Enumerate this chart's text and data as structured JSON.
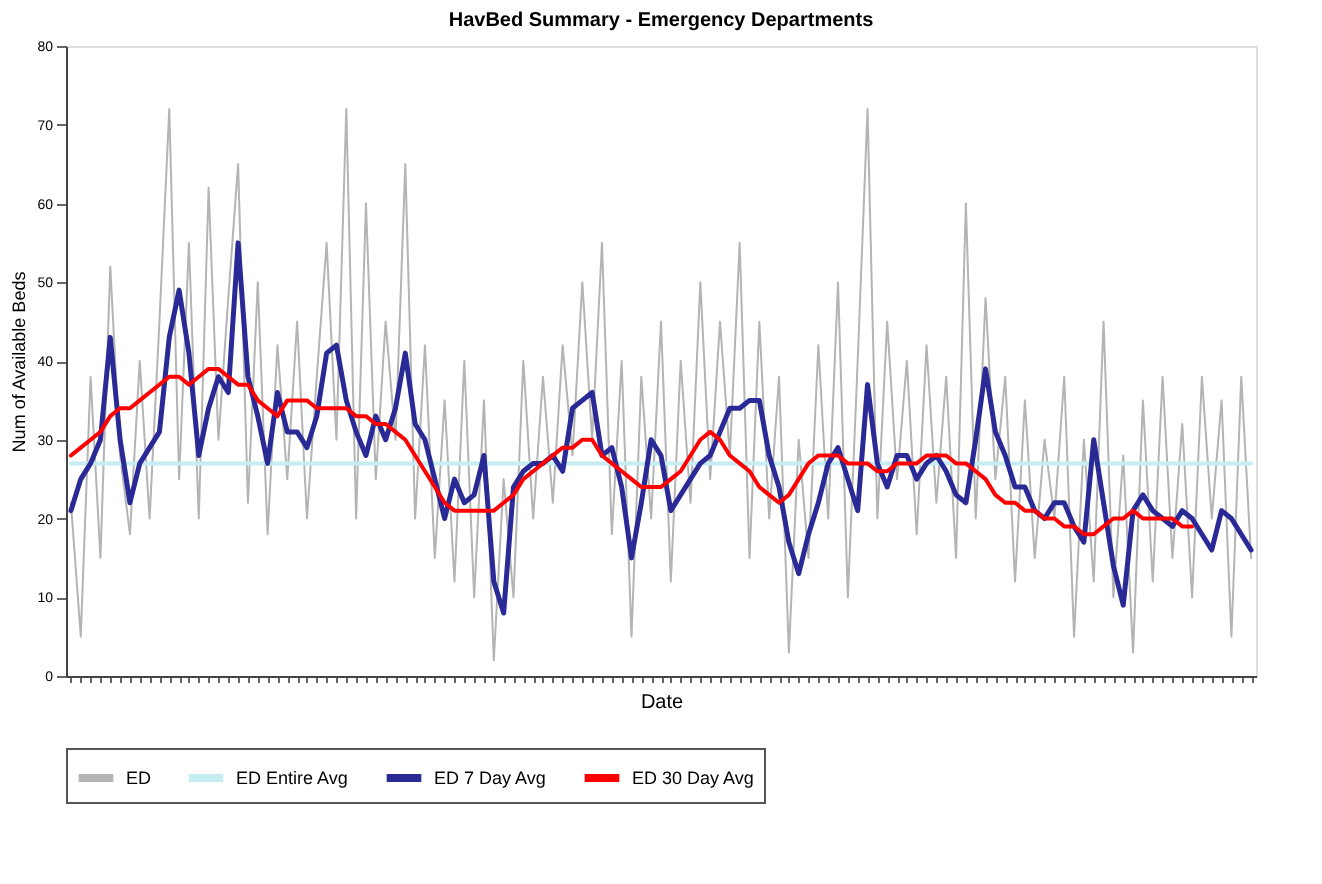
{
  "chart_data": {
    "type": "line",
    "title": "HavBed Summary - Emergency Departments",
    "xlabel": "Date",
    "ylabel": "Num of Available Beds",
    "categories": [
      null,
      null,
      null,
      null,
      null,
      null,
      null,
      null,
      null,
      null,
      null,
      null,
      null,
      null,
      null,
      null,
      null,
      null,
      null,
      null,
      null,
      null,
      null,
      null,
      null,
      null,
      null,
      null,
      null,
      null,
      null,
      null,
      null,
      null,
      null,
      null,
      null,
      null,
      null,
      null,
      null,
      null,
      null,
      null,
      null,
      null,
      null,
      null,
      null,
      null,
      null,
      null,
      null,
      null,
      null,
      null,
      null,
      null,
      null,
      null,
      null,
      null,
      null,
      null,
      null,
      null,
      null,
      null,
      null,
      null,
      null,
      null,
      null,
      null,
      null,
      null,
      null,
      null,
      null,
      null,
      null,
      null,
      null,
      null,
      null,
      null,
      null,
      null,
      null,
      null,
      null,
      null,
      null,
      null,
      null,
      null,
      null,
      null,
      null,
      null,
      null,
      null,
      null,
      null,
      null,
      null,
      null,
      null,
      null,
      null,
      null,
      null,
      null,
      null,
      null,
      null,
      null,
      null,
      null,
      null,
      null
    ],
    "series": [
      {
        "name": "ED",
        "color": "#b4b4b4",
        "values": [
          22,
          5,
          38,
          15,
          52,
          28,
          18,
          40,
          20,
          45,
          72,
          25,
          55,
          20,
          62,
          30,
          48,
          65,
          22,
          50,
          18,
          42,
          25,
          45,
          20,
          38,
          55,
          30,
          72,
          20,
          60,
          25,
          45,
          30,
          65,
          20,
          42,
          15,
          35,
          12,
          40,
          10,
          35,
          2,
          25,
          10,
          40,
          20,
          38,
          22,
          42,
          28,
          50,
          30,
          55,
          18,
          40,
          5,
          38,
          20,
          45,
          12,
          40,
          22,
          50,
          25,
          45,
          28,
          55,
          15,
          45,
          20,
          38,
          3,
          30,
          15,
          42,
          20,
          50,
          10,
          40,
          72,
          20,
          45,
          25,
          40,
          18,
          42,
          22,
          38,
          15,
          60,
          20,
          48,
          25,
          38,
          12,
          35,
          15,
          30,
          20,
          38,
          5,
          30,
          12,
          45,
          10,
          28,
          3,
          35,
          12,
          38,
          15,
          32,
          10,
          38,
          20,
          35,
          5,
          38,
          15
        ]
      },
      {
        "name": "ED Entire Avg",
        "color": "#c6eef2",
        "values": [
          27,
          27,
          27,
          27,
          27,
          27,
          27,
          27,
          27,
          27,
          27,
          27,
          27,
          27,
          27,
          27,
          27,
          27,
          27,
          27,
          27,
          27,
          27,
          27,
          27,
          27,
          27,
          27,
          27,
          27,
          27,
          27,
          27,
          27,
          27,
          27,
          27,
          27,
          27,
          27,
          27,
          27,
          27,
          27,
          27,
          27,
          27,
          27,
          27,
          27,
          27,
          27,
          27,
          27,
          27,
          27,
          27,
          27,
          27,
          27,
          27,
          27,
          27,
          27,
          27,
          27,
          27,
          27,
          27,
          27,
          27,
          27,
          27,
          27,
          27,
          27,
          27,
          27,
          27,
          27,
          27,
          27,
          27,
          27,
          27,
          27,
          27,
          27,
          27,
          27,
          27,
          27,
          27,
          27,
          27,
          27,
          27,
          27,
          27,
          27,
          27,
          27,
          27,
          27,
          27,
          27,
          27,
          27,
          27,
          27,
          27,
          27,
          27,
          27,
          27,
          27,
          27,
          27,
          27,
          27,
          27
        ]
      },
      {
        "name": "ED 7 Day Avg",
        "color": "#2a2a96",
        "values": [
          21,
          25,
          27,
          30,
          43,
          30,
          22,
          27,
          29,
          31,
          43,
          49,
          41,
          28,
          34,
          38,
          36,
          55,
          38,
          33,
          27,
          36,
          31,
          31,
          29,
          33,
          41,
          42,
          35,
          31,
          28,
          33,
          30,
          34,
          41,
          32,
          30,
          25,
          20,
          25,
          22,
          23,
          28,
          12,
          8,
          24,
          26,
          27,
          27,
          28,
          26,
          34,
          35,
          36,
          28,
          29,
          24,
          15,
          22,
          30,
          28,
          21,
          23,
          25,
          27,
          28,
          31,
          34,
          34,
          35,
          35,
          28,
          24,
          17,
          13,
          18,
          22,
          27,
          29,
          25,
          21,
          37,
          27,
          24,
          28,
          28,
          25,
          27,
          28,
          26,
          23,
          22,
          30,
          39,
          31,
          28,
          24,
          24,
          21,
          20,
          22,
          22,
          19,
          17,
          30,
          22,
          14,
          9,
          21,
          23,
          21,
          20,
          19,
          21,
          20,
          18,
          16,
          21,
          20,
          18,
          16
        ]
      },
      {
        "name": "ED 30 Day Avg",
        "color": "#ff0000",
        "values": [
          28,
          29,
          30,
          31,
          33,
          34,
          34,
          35,
          36,
          37,
          38,
          38,
          37,
          38,
          39,
          39,
          38,
          37,
          37,
          35,
          34,
          33,
          35,
          35,
          35,
          34,
          34,
          34,
          34,
          33,
          33,
          32,
          32,
          31,
          30,
          28,
          26,
          24,
          22,
          21,
          21,
          21,
          21,
          21,
          22,
          23,
          25,
          26,
          27,
          28,
          29,
          29,
          30,
          30,
          28,
          27,
          26,
          25,
          24,
          24,
          24,
          25,
          26,
          28,
          30,
          31,
          30,
          28,
          27,
          26,
          24,
          23,
          22,
          23,
          25,
          27,
          28,
          28,
          28,
          27,
          27,
          27,
          26,
          26,
          27,
          27,
          27,
          28,
          28,
          28,
          27,
          27,
          26,
          25,
          23,
          22,
          22,
          21,
          21,
          20,
          20,
          19,
          19,
          18,
          18,
          19,
          20,
          20,
          21,
          20,
          20,
          20,
          20,
          19,
          19,
          null,
          null,
          null,
          null,
          null,
          null
        ]
      }
    ],
    "ylim": [
      0,
      80
    ],
    "yticks": [
      0,
      10,
      20,
      30,
      40,
      50,
      60,
      70,
      80
    ],
    "grid": false,
    "legend": "bottom",
    "tick_labels": "y",
    "marker": "none",
    "line_style": "solid"
  }
}
